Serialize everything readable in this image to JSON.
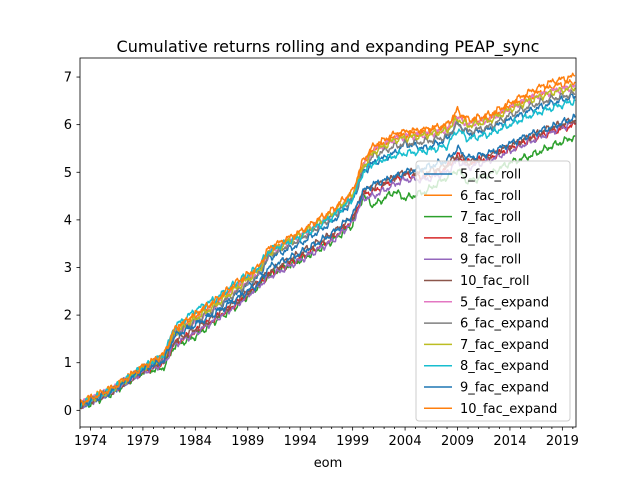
{
  "chart_data": {
    "type": "line",
    "title": "Cumulative returns rolling and expanding PEAP_sync",
    "xlabel": "eom",
    "ylabel": "",
    "xlim": [
      1973.0,
      2020.3
    ],
    "ylim": [
      -0.35,
      7.4
    ],
    "x_ticks": [
      1974,
      1979,
      1984,
      1989,
      1994,
      1999,
      2004,
      2009,
      2014,
      2019
    ],
    "y_ticks": [
      0,
      1,
      2,
      3,
      4,
      5,
      6,
      7
    ],
    "grid": false,
    "legend_position": "lower-right",
    "series": [
      {
        "name": "5_fac_roll",
        "color": "#1f77b4",
        "x": [
          1973.0,
          1974,
          1976,
          1979,
          1981,
          1982,
          1984,
          1986,
          1988,
          1990,
          1991,
          1994,
          1997,
          1999,
          2000,
          2001,
          2003,
          2004,
          2006,
          2008,
          2009,
          2010,
          2012,
          2014,
          2016,
          2018,
          2020.2
        ],
        "y": [
          0.1,
          0.2,
          0.4,
          0.85,
          1.1,
          1.6,
          1.85,
          2.1,
          2.45,
          2.8,
          3.2,
          3.5,
          3.95,
          4.4,
          5.0,
          5.2,
          5.4,
          5.6,
          5.5,
          5.7,
          6.05,
          5.8,
          5.9,
          6.1,
          6.3,
          6.45,
          6.6
        ]
      },
      {
        "name": "6_fac_roll",
        "color": "#ff7f0e",
        "x": [
          1973.0,
          1974,
          1976,
          1979,
          1981,
          1982,
          1984,
          1986,
          1988,
          1990,
          1991,
          1994,
          1997,
          1999,
          2000,
          2001,
          2003,
          2004,
          2006,
          2008,
          2009,
          2010,
          2012,
          2014,
          2016,
          2018,
          2020.2
        ],
        "y": [
          0.15,
          0.25,
          0.45,
          0.9,
          1.15,
          1.7,
          2.0,
          2.3,
          2.65,
          2.95,
          3.35,
          3.7,
          4.15,
          4.55,
          5.2,
          5.5,
          5.75,
          5.8,
          5.85,
          5.95,
          6.2,
          6.05,
          6.15,
          6.4,
          6.6,
          6.8,
          6.9
        ]
      },
      {
        "name": "7_fac_roll",
        "color": "#2ca02c",
        "x": [
          1973.0,
          1974,
          1976,
          1979,
          1981,
          1982,
          1984,
          1986,
          1988,
          1990,
          1991,
          1994,
          1997,
          1999,
          2000,
          2001,
          2003,
          2004,
          2006,
          2008,
          2009,
          2010,
          2012,
          2014,
          2016,
          2018,
          2020.2
        ],
        "y": [
          0.05,
          0.15,
          0.35,
          0.8,
          0.9,
          1.35,
          1.55,
          1.9,
          2.2,
          2.6,
          2.85,
          3.15,
          3.55,
          3.9,
          4.5,
          4.3,
          4.6,
          4.45,
          4.6,
          4.9,
          5.05,
          4.8,
          4.95,
          5.2,
          5.35,
          5.55,
          5.75
        ]
      },
      {
        "name": "8_fac_roll",
        "color": "#d62728",
        "x": [
          1973.0,
          1974,
          1976,
          1979,
          1981,
          1982,
          1984,
          1986,
          1988,
          1990,
          1991,
          1994,
          1997,
          1999,
          2000,
          2001,
          2003,
          2004,
          2006,
          2008,
          2009,
          2010,
          2012,
          2014,
          2016,
          2018,
          2020.2
        ],
        "y": [
          0.1,
          0.2,
          0.4,
          0.82,
          1.0,
          1.4,
          1.65,
          1.95,
          2.25,
          2.65,
          2.85,
          3.2,
          3.6,
          4.0,
          4.55,
          4.6,
          4.85,
          4.95,
          4.9,
          5.1,
          5.35,
          5.2,
          5.3,
          5.5,
          5.7,
          5.85,
          6.0
        ]
      },
      {
        "name": "9_fac_roll",
        "color": "#9467bd",
        "x": [
          1973.0,
          1974,
          1976,
          1979,
          1981,
          1982,
          1984,
          1986,
          1988,
          1990,
          1991,
          1994,
          1997,
          1999,
          2000,
          2001,
          2003,
          2004,
          2006,
          2008,
          2009,
          2010,
          2012,
          2014,
          2016,
          2018,
          2020.2
        ],
        "y": [
          0.08,
          0.18,
          0.38,
          0.8,
          0.98,
          1.38,
          1.62,
          1.92,
          2.22,
          2.6,
          2.8,
          3.15,
          3.55,
          3.95,
          4.45,
          4.5,
          4.75,
          4.85,
          4.85,
          5.0,
          5.25,
          5.1,
          5.25,
          5.45,
          5.65,
          5.85,
          6.05
        ]
      },
      {
        "name": "10_fac_roll",
        "color": "#8c564b",
        "x": [
          1973.0,
          1974,
          1976,
          1979,
          1981,
          1982,
          1984,
          1986,
          1988,
          1990,
          1991,
          1994,
          1997,
          1999,
          2000,
          2001,
          2003,
          2004,
          2006,
          2008,
          2009,
          2010,
          2012,
          2014,
          2016,
          2018,
          2020.2
        ],
        "y": [
          0.1,
          0.2,
          0.4,
          0.85,
          1.05,
          1.45,
          1.7,
          2.0,
          2.3,
          2.7,
          2.9,
          3.3,
          3.7,
          4.05,
          4.6,
          4.7,
          4.9,
          5.0,
          5.0,
          5.15,
          5.35,
          5.2,
          5.35,
          5.55,
          5.75,
          5.95,
          6.1
        ]
      },
      {
        "name": "5_fac_expand",
        "color": "#e377c2",
        "x": [
          1973.0,
          1974,
          1976,
          1979,
          1981,
          1982,
          1984,
          1986,
          1988,
          1990,
          1991,
          1994,
          1997,
          1999,
          2000,
          2001,
          2003,
          2004,
          2006,
          2008,
          2009,
          2010,
          2012,
          2014,
          2016,
          2018,
          2020.2
        ],
        "y": [
          0.12,
          0.22,
          0.42,
          0.88,
          1.12,
          1.6,
          1.9,
          2.2,
          2.55,
          2.9,
          3.3,
          3.65,
          4.1,
          4.5,
          5.15,
          5.45,
          5.7,
          5.75,
          5.8,
          5.9,
          6.15,
          6.0,
          6.1,
          6.35,
          6.55,
          6.7,
          6.8
        ]
      },
      {
        "name": "6_fac_expand",
        "color": "#7f7f7f",
        "x": [
          1973.0,
          1974,
          1976,
          1979,
          1981,
          1982,
          1984,
          1986,
          1988,
          1990,
          1991,
          1994,
          1997,
          1999,
          2000,
          2001,
          2003,
          2004,
          2006,
          2008,
          2009,
          2010,
          2012,
          2014,
          2016,
          2018,
          2020.2
        ],
        "y": [
          0.12,
          0.22,
          0.42,
          0.88,
          1.1,
          1.58,
          1.88,
          2.18,
          2.5,
          2.85,
          3.25,
          3.6,
          4.05,
          4.45,
          5.05,
          5.35,
          5.55,
          5.6,
          5.65,
          5.75,
          6.0,
          5.85,
          5.95,
          6.2,
          6.4,
          6.55,
          6.65
        ]
      },
      {
        "name": "7_fac_expand",
        "color": "#bcbd22",
        "x": [
          1973.0,
          1974,
          1976,
          1979,
          1981,
          1982,
          1984,
          1986,
          1988,
          1990,
          1991,
          1994,
          1997,
          1999,
          2000,
          2001,
          2003,
          2004,
          2006,
          2008,
          2009,
          2010,
          2012,
          2014,
          2016,
          2018,
          2020.2
        ],
        "y": [
          0.13,
          0.23,
          0.43,
          0.9,
          1.12,
          1.62,
          1.92,
          2.22,
          2.58,
          2.92,
          3.3,
          3.68,
          4.12,
          4.52,
          5.12,
          5.42,
          5.68,
          5.72,
          5.78,
          5.88,
          6.12,
          5.98,
          6.08,
          6.32,
          6.52,
          6.68,
          6.78
        ]
      },
      {
        "name": "8_fac_expand",
        "color": "#17becf",
        "x": [
          1973.0,
          1974,
          1976,
          1979,
          1981,
          1982,
          1984,
          1986,
          1988,
          1990,
          1991,
          1994,
          1997,
          1999,
          2000,
          2001,
          2003,
          2004,
          2006,
          2008,
          2009,
          2010,
          2012,
          2014,
          2016,
          2018,
          2020.2
        ],
        "y": [
          0.12,
          0.22,
          0.42,
          0.9,
          1.15,
          1.75,
          2.1,
          2.35,
          2.7,
          3.0,
          3.35,
          3.65,
          4.05,
          4.45,
          5.0,
          5.2,
          5.35,
          5.4,
          5.45,
          5.55,
          5.9,
          5.7,
          5.8,
          6.0,
          6.2,
          6.35,
          6.5
        ]
      },
      {
        "name": "9_fac_expand",
        "color": "#1f77b4",
        "x": [
          1973.0,
          1974,
          1976,
          1979,
          1981,
          1982,
          1984,
          1986,
          1988,
          1990,
          1991,
          1994,
          1997,
          1999,
          2000,
          2001,
          2003,
          2004,
          2006,
          2008,
          2009,
          2010,
          2012,
          2014,
          2016,
          2018,
          2020.2
        ],
        "y": [
          0.1,
          0.2,
          0.4,
          0.85,
          1.05,
          1.55,
          1.8,
          2.05,
          2.35,
          2.65,
          3.0,
          3.3,
          3.7,
          4.1,
          4.6,
          4.75,
          4.9,
          5.0,
          5.1,
          5.25,
          5.5,
          5.3,
          5.4,
          5.6,
          5.8,
          5.95,
          6.15
        ]
      },
      {
        "name": "10_fac_expand",
        "color": "#ff7f0e",
        "x": [
          1973.0,
          1974,
          1976,
          1979,
          1981,
          1982,
          1984,
          1986,
          1988,
          1990,
          1991,
          1994,
          1997,
          1999,
          2000,
          2001,
          2003,
          2004,
          2006,
          2008,
          2009,
          2010,
          2012,
          2014,
          2016,
          2018,
          2020.2
        ],
        "y": [
          0.15,
          0.25,
          0.45,
          0.92,
          1.18,
          1.7,
          2.02,
          2.32,
          2.7,
          3.0,
          3.4,
          3.75,
          4.2,
          4.6,
          5.25,
          5.55,
          5.8,
          5.85,
          5.9,
          6.0,
          6.3,
          6.1,
          6.2,
          6.45,
          6.7,
          6.9,
          7.02
        ]
      }
    ]
  }
}
